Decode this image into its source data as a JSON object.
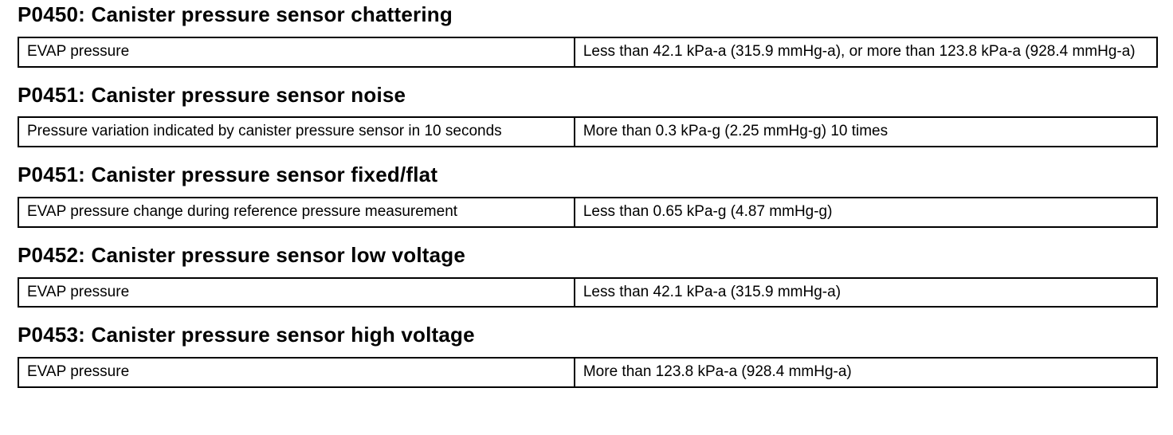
{
  "sections": [
    {
      "heading": "P0450: Canister pressure sensor chattering",
      "rows": [
        {
          "condition": "EVAP pressure",
          "criteria": "Less than 42.1 kPa-a (315.9 mmHg-a), or more than 123.8 kPa-a (928.4 mmHg-a)"
        }
      ]
    },
    {
      "heading": "P0451: Canister pressure sensor noise",
      "rows": [
        {
          "condition": "Pressure variation indicated by canister pressure sensor in 10 seconds",
          "criteria": "More than 0.3 kPa-g (2.25 mmHg-g) 10 times"
        }
      ]
    },
    {
      "heading": "P0451: Canister pressure sensor fixed/flat",
      "rows": [
        {
          "condition": "EVAP pressure change during reference pressure measurement",
          "criteria": "Less than 0.65 kPa-g (4.87 mmHg-g)"
        }
      ]
    },
    {
      "heading": "P0452: Canister pressure sensor low voltage",
      "rows": [
        {
          "condition": "EVAP pressure",
          "criteria": "Less than 42.1 kPa-a (315.9 mmHg-a)"
        }
      ]
    },
    {
      "heading": "P0453: Canister pressure sensor high voltage",
      "rows": [
        {
          "condition": "EVAP pressure",
          "criteria": "More than 123.8 kPa-a (928.4 mmHg-a)"
        }
      ]
    }
  ]
}
